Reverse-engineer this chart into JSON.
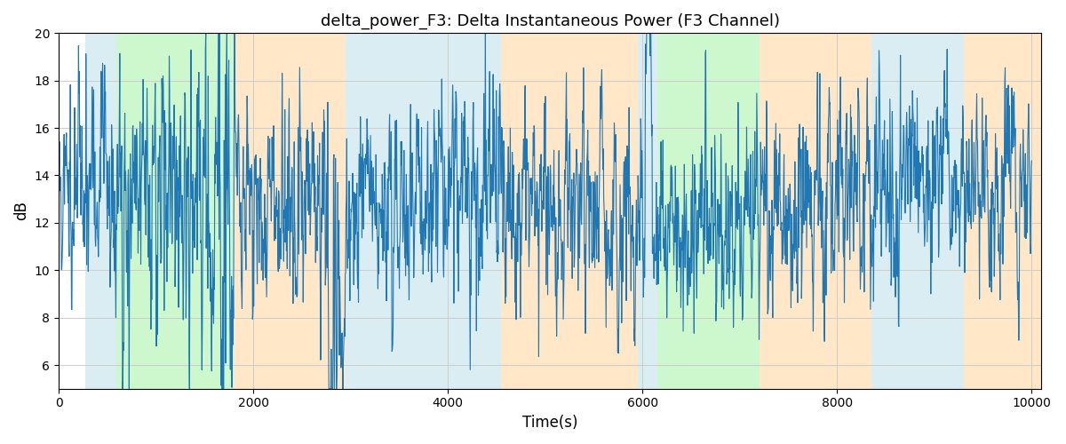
{
  "title": "delta_power_F3: Delta Instantaneous Power (F3 Channel)",
  "xlabel": "Time(s)",
  "ylabel": "dB",
  "ylim": [
    5,
    20
  ],
  "xlim": [
    0,
    10100
  ],
  "regions": [
    {
      "start": 270,
      "end": 590,
      "color": "#ADD8E6",
      "alpha": 0.45
    },
    {
      "start": 590,
      "end": 1800,
      "color": "#90EE90",
      "alpha": 0.45
    },
    {
      "start": 1800,
      "end": 2950,
      "color": "#FFD59A",
      "alpha": 0.55
    },
    {
      "start": 2950,
      "end": 3400,
      "color": "#ADD8E6",
      "alpha": 0.45
    },
    {
      "start": 3400,
      "end": 4550,
      "color": "#ADD8E6",
      "alpha": 0.45
    },
    {
      "start": 4550,
      "end": 5950,
      "color": "#FFD59A",
      "alpha": 0.55
    },
    {
      "start": 5950,
      "end": 6150,
      "color": "#ADD8E6",
      "alpha": 0.45
    },
    {
      "start": 6150,
      "end": 7200,
      "color": "#90EE90",
      "alpha": 0.45
    },
    {
      "start": 7200,
      "end": 8350,
      "color": "#FFD59A",
      "alpha": 0.55
    },
    {
      "start": 8350,
      "end": 9300,
      "color": "#ADD8E6",
      "alpha": 0.45
    },
    {
      "start": 9300,
      "end": 10100,
      "color": "#FFD59A",
      "alpha": 0.55
    }
  ],
  "line_color": "#1f77b4",
  "line_width": 0.8,
  "grid": true,
  "grid_color": "#cccccc",
  "yticks": [
    6,
    8,
    10,
    12,
    14,
    16,
    18,
    20
  ],
  "xticks": [
    0,
    2000,
    4000,
    6000,
    8000,
    10000
  ],
  "figsize": [
    12,
    5
  ],
  "dpi": 100,
  "bg_color": "white",
  "title_fontsize": 13,
  "label_fontsize": 12
}
